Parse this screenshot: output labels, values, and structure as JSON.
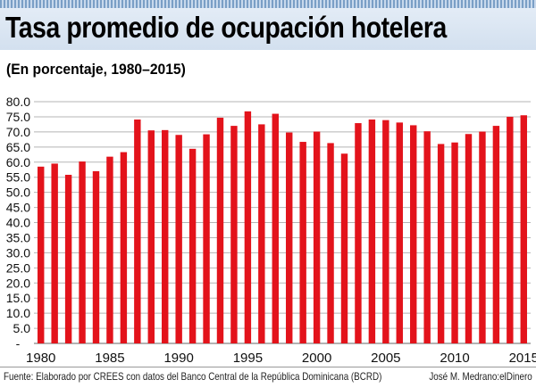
{
  "header": {
    "title": "Tasa promedio de ocupación hotelera",
    "subtitle": "(En porcentaje, 1980–2015)"
  },
  "footer": {
    "source": "Fuente: Elaborado por CREES con datos del Banco Central de la República Dominicana (BCRD)",
    "credit": "José M. Medrano:elDinero"
  },
  "colors": {
    "bar": "#e3131b",
    "header_band": "#d9e5f2",
    "grid": "#b5b5b5"
  },
  "chart_data": {
    "type": "bar",
    "title": "Tasa promedio de ocupación hotelera",
    "subtitle": "(En porcentaje, 1980–2015)",
    "categories": [
      1980,
      1981,
      1982,
      1983,
      1984,
      1985,
      1986,
      1987,
      1988,
      1989,
      1990,
      1991,
      1992,
      1993,
      1994,
      1995,
      1996,
      1997,
      1998,
      1999,
      2000,
      2001,
      2002,
      2003,
      2004,
      2005,
      2006,
      2007,
      2008,
      2009,
      2010,
      2011,
      2012,
      2013,
      2014,
      2015
    ],
    "values": [
      58.5,
      59.5,
      55.8,
      60.2,
      57.0,
      61.8,
      63.3,
      74.1,
      70.5,
      70.6,
      69.0,
      64.4,
      69.2,
      74.7,
      72.0,
      76.8,
      72.5,
      76.0,
      69.8,
      66.7,
      70.1,
      66.3,
      62.8,
      72.9,
      74.1,
      73.9,
      73.1,
      72.2,
      70.2,
      66.0,
      66.5,
      69.3,
      70.1,
      72.0,
      75.0,
      75.5
    ],
    "x_tick_labels": [
      "1980",
      "1985",
      "1990",
      "1995",
      "2000",
      "2005",
      "2010",
      "2015"
    ],
    "y_tick_labels": [
      "-",
      "5.0",
      "10.0",
      "15.0",
      "20.0",
      "25.0",
      "30.0",
      "35.0",
      "40.0",
      "45.0",
      "50.0",
      "55.0",
      "60.0",
      "65.0",
      "70.0",
      "75.0",
      "80.0"
    ],
    "ylim": [
      0,
      80
    ],
    "grid": true,
    "legend": "none"
  }
}
